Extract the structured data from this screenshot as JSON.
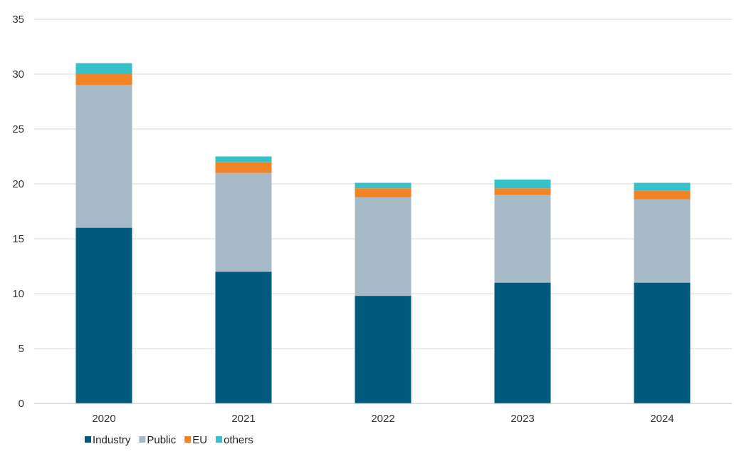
{
  "chart_data": {
    "type": "bar",
    "stacked": true,
    "categories": [
      "2020",
      "2021",
      "2022",
      "2023",
      "2024"
    ],
    "series": [
      {
        "name": "Industry",
        "color": "#005a7d",
        "values": [
          16.0,
          12.0,
          9.8,
          11.0,
          11.0
        ]
      },
      {
        "name": "Public",
        "color": "#a6bac7",
        "values": [
          13.0,
          9.0,
          9.0,
          8.0,
          7.6
        ]
      },
      {
        "name": "EU",
        "color": "#f28325",
        "values": [
          1.0,
          1.0,
          0.8,
          0.6,
          0.8
        ]
      },
      {
        "name": "others",
        "color": "#36c1c8",
        "values": [
          1.0,
          0.5,
          0.5,
          0.8,
          0.7
        ]
      }
    ],
    "ylim": [
      0,
      35
    ],
    "yticks": [
      "0",
      "5",
      "10",
      "15",
      "20",
      "25",
      "30",
      "35"
    ],
    "grid": true,
    "legend": "bottom-left",
    "title": "",
    "xlabel": "",
    "ylabel": ""
  }
}
